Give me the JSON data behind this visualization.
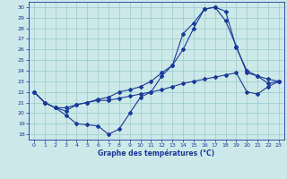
{
  "title": "",
  "xlabel": "Graphe des températures (°C)",
  "ylabel": "",
  "bg_color": "#cce8e8",
  "grid_color": "#99cccc",
  "line_color": "#1a3a9a",
  "xlim": [
    -0.5,
    23.5
  ],
  "ylim": [
    17.5,
    30.5
  ],
  "yticks": [
    18,
    19,
    20,
    21,
    22,
    23,
    24,
    25,
    26,
    27,
    28,
    29,
    30
  ],
  "xticks": [
    0,
    1,
    2,
    3,
    4,
    5,
    6,
    7,
    8,
    9,
    10,
    11,
    12,
    13,
    14,
    15,
    16,
    17,
    18,
    19,
    20,
    21,
    22,
    23
  ],
  "line1_x": [
    0,
    1,
    2,
    3,
    4,
    5,
    6,
    7,
    8,
    9,
    10,
    11,
    12,
    13,
    14,
    15,
    16,
    17,
    18,
    19,
    20,
    21,
    22,
    23
  ],
  "line1_y": [
    22.0,
    21.0,
    20.5,
    19.8,
    19.0,
    18.9,
    18.8,
    18.0,
    18.5,
    20.0,
    21.5,
    22.0,
    23.5,
    24.5,
    27.5,
    28.5,
    29.8,
    30.0,
    29.6,
    26.2,
    24.0,
    23.5,
    23.2,
    23.0
  ],
  "line2_x": [
    0,
    1,
    2,
    3,
    4,
    5,
    6,
    7,
    8,
    9,
    10,
    11,
    12,
    13,
    14,
    15,
    16,
    17,
    18,
    19,
    20,
    21,
    22,
    23
  ],
  "line2_y": [
    22.0,
    21.0,
    20.5,
    20.5,
    20.8,
    21.0,
    21.2,
    21.2,
    21.4,
    21.6,
    21.8,
    22.0,
    22.2,
    22.5,
    22.8,
    23.0,
    23.2,
    23.4,
    23.6,
    23.8,
    22.0,
    21.8,
    22.5,
    23.0
  ],
  "line3_x": [
    0,
    1,
    2,
    3,
    4,
    5,
    6,
    7,
    8,
    9,
    10,
    11,
    12,
    13,
    14,
    15,
    16,
    17,
    18,
    19,
    20,
    21,
    22,
    23
  ],
  "line3_y": [
    22.0,
    21.0,
    20.5,
    20.2,
    20.8,
    21.0,
    21.3,
    21.5,
    22.0,
    22.2,
    22.5,
    23.0,
    23.8,
    24.5,
    26.0,
    28.0,
    29.8,
    30.0,
    28.7,
    26.3,
    23.8,
    23.5,
    22.8,
    23.0
  ],
  "tick_fontsize": 4.5,
  "xlabel_fontsize": 5.5
}
